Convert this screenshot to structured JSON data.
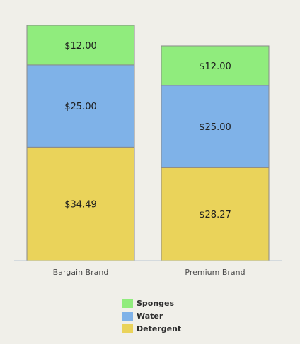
{
  "chart_data": {
    "type": "bar",
    "stacked": true,
    "categories": [
      "Bargain Brand",
      "Premium Brand"
    ],
    "series": [
      {
        "name": "Detergent",
        "color": "#ead35a",
        "values": [
          34.49,
          28.27
        ],
        "labels": [
          "$34.49",
          "$28.27"
        ]
      },
      {
        "name": "Water",
        "color": "#7fb2e8",
        "values": [
          25.0,
          25.0
        ],
        "labels": [
          "$25.00",
          "$25.00"
        ]
      },
      {
        "name": "Sponges",
        "color": "#90ec7d",
        "values": [
          12.0,
          12.0
        ],
        "labels": [
          "$12.00",
          "$12.00"
        ]
      }
    ],
    "legend_order": [
      "Sponges",
      "Water",
      "Detergent"
    ],
    "legend_position": "bottom",
    "ylim": [
      0,
      71.49
    ],
    "grid": false,
    "title": "",
    "xlabel": "",
    "ylabel": "",
    "axis_color": "#b8c4d3",
    "bar_border_color": "#8a8a8a",
    "background_color": "#f0efe9"
  }
}
